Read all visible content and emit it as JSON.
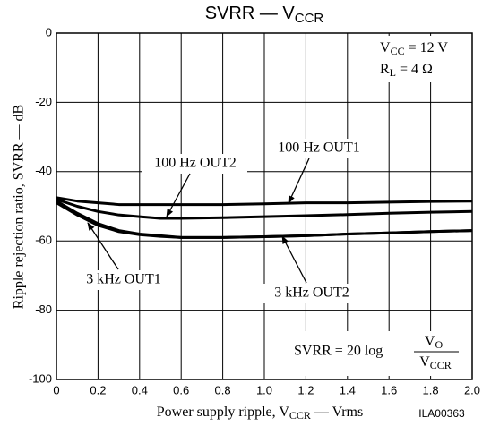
{
  "chart_data": {
    "type": "line",
    "title": {
      "main": "SVRR — V",
      "sub": "CCR"
    },
    "x_label": {
      "main": "Power supply ripple, V",
      "sub": "CCR",
      "rest": " — Vrms"
    },
    "y_label": "Ripple rejection ratio, SVRR — dB",
    "figure_code": "ILA00363",
    "conditions": [
      {
        "main": "V",
        "sub": "CC",
        "rest": " = 12 V"
      },
      {
        "main": "R",
        "sub": "L",
        "rest": " = 4 Ω"
      }
    ],
    "formula": {
      "lhs": "SVRR = 20 log",
      "num_main": "V",
      "num_sub": "O",
      "den_main": "V",
      "den_sub": "CCR"
    },
    "x": [
      0,
      0.1,
      0.2,
      0.3,
      0.4,
      0.5,
      0.6,
      0.8,
      1.0,
      1.2,
      1.4,
      1.6,
      1.8,
      2.0
    ],
    "series": [
      {
        "name": "100 Hz OUT1",
        "color": "#000000",
        "values": [
          -47.5,
          -48.5,
          -49,
          -49.5,
          -49.5,
          -49.5,
          -49.5,
          -49.5,
          -49.3,
          -49,
          -49,
          -48.8,
          -48.6,
          -48.5
        ]
      },
      {
        "name": "100 Hz OUT2",
        "color": "#000000",
        "values": [
          -48,
          -50,
          -51.5,
          -52.5,
          -53,
          -53.5,
          -53.5,
          -53.3,
          -53,
          -52.7,
          -52.4,
          -52,
          -51.7,
          -51.5
        ]
      },
      {
        "name": "3 kHz OUT1",
        "color": "#000000",
        "values": [
          -48.5,
          -52,
          -55,
          -57,
          -58,
          -58.5,
          -59,
          -59,
          -58.8,
          -58.5,
          -58,
          -57.7,
          -57.3,
          -57
        ]
      },
      {
        "name": "3 kHz OUT2",
        "color": "#000000",
        "values": [
          -49,
          -52.5,
          -55.5,
          -57.3,
          -58.2,
          -58.7,
          -59,
          -59,
          -58.8,
          -58.5,
          -58,
          -57.7,
          -57.3,
          -57
        ]
      }
    ],
    "xlim": [
      0,
      2
    ],
    "ylim": [
      -100,
      0
    ],
    "xticks": [
      0,
      0.2,
      0.4,
      0.6,
      0.8,
      {
        "value": 1,
        "label": "1.0"
      },
      1.2,
      1.4,
      1.6,
      1.8,
      {
        "value": 2,
        "label": "2.0"
      }
    ],
    "yticks": [
      0,
      -20,
      -40,
      -60,
      -80,
      -100
    ],
    "grid": true
  }
}
